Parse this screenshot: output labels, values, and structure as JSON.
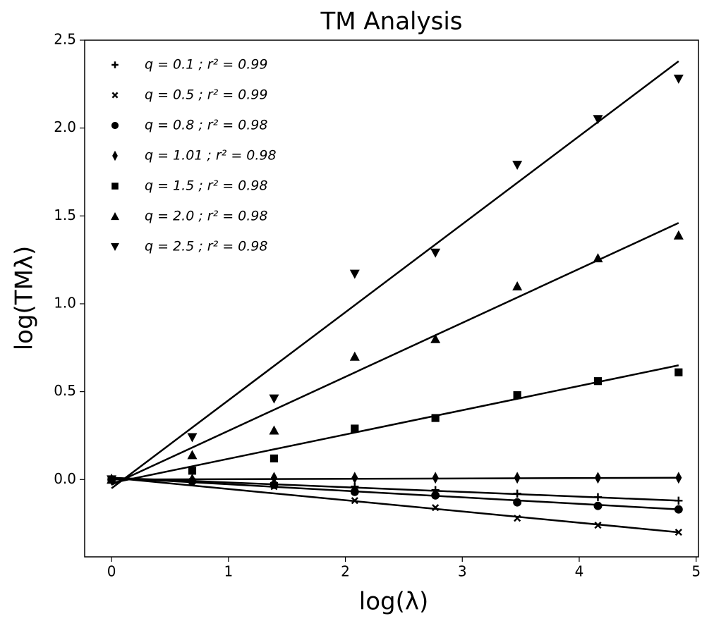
{
  "chart_data": {
    "type": "scatter",
    "title": "TM Analysis",
    "xlabel": "log(λ)",
    "ylabel": "log(TMλ)",
    "x": [
      0,
      0.69,
      1.39,
      2.08,
      2.77,
      3.47,
      4.16,
      4.85
    ],
    "fit_x": [
      0,
      4.85
    ],
    "xlim": [
      -0.23,
      5.02
    ],
    "ylim": [
      -0.44,
      2.5
    ],
    "xticks": [
      0,
      1,
      2,
      3,
      4,
      5
    ],
    "yticks": [
      {
        "value": 0,
        "label": "0.0"
      },
      0.5,
      {
        "value": 1,
        "label": "1.0"
      },
      1.5,
      {
        "value": 2,
        "label": "2.0"
      },
      2.5
    ],
    "grid": false,
    "legend": "upper left",
    "color": "#000000",
    "series": [
      {
        "name": "q = 0.1 ; r² = 0.99",
        "marker": "plus",
        "values": [
          0,
          0,
          -0.02,
          -0.04,
          -0.06,
          -0.08,
          -0.1,
          -0.12
        ],
        "fit": [
          0.01,
          -0.12
        ]
      },
      {
        "name": "q = 0.5 ; r² = 0.99",
        "marker": "x",
        "values": [
          0,
          -0.01,
          -0.04,
          -0.12,
          -0.16,
          -0.22,
          -0.26,
          -0.3
        ],
        "fit": [
          0.01,
          -0.3
        ]
      },
      {
        "name": "q = 0.8 ; r² = 0.98",
        "marker": "circle",
        "values": [
          0,
          -0.01,
          -0.03,
          -0.07,
          -0.09,
          -0.13,
          -0.15,
          -0.17
        ],
        "fit": [
          0.01,
          -0.17
        ]
      },
      {
        "name": "q = 1.01 ; r² = 0.98",
        "marker": "diamond",
        "values": [
          0,
          0,
          0.01,
          0.01,
          0.01,
          0.01,
          0.01,
          0.01
        ],
        "fit": [
          0,
          0.01
        ]
      },
      {
        "name": "q = 1.5 ; r² = 0.98",
        "marker": "square",
        "values": [
          0,
          0.05,
          0.12,
          0.29,
          0.35,
          0.48,
          0.56,
          0.61
        ],
        "fit": [
          -0.02,
          0.65
        ]
      },
      {
        "name": "q = 2.0 ; r² = 0.98",
        "marker": "triangle-up",
        "values": [
          0,
          0.14,
          0.28,
          0.7,
          0.8,
          1.1,
          1.26,
          1.39
        ],
        "fit": [
          -0.03,
          1.46
        ]
      },
      {
        "name": "q = 2.5 ; r² = 0.98",
        "marker": "triangle-down",
        "values": [
          0,
          0.24,
          0.46,
          1.17,
          1.29,
          1.79,
          2.05,
          2.28
        ],
        "fit": [
          -0.05,
          2.38
        ]
      }
    ]
  }
}
